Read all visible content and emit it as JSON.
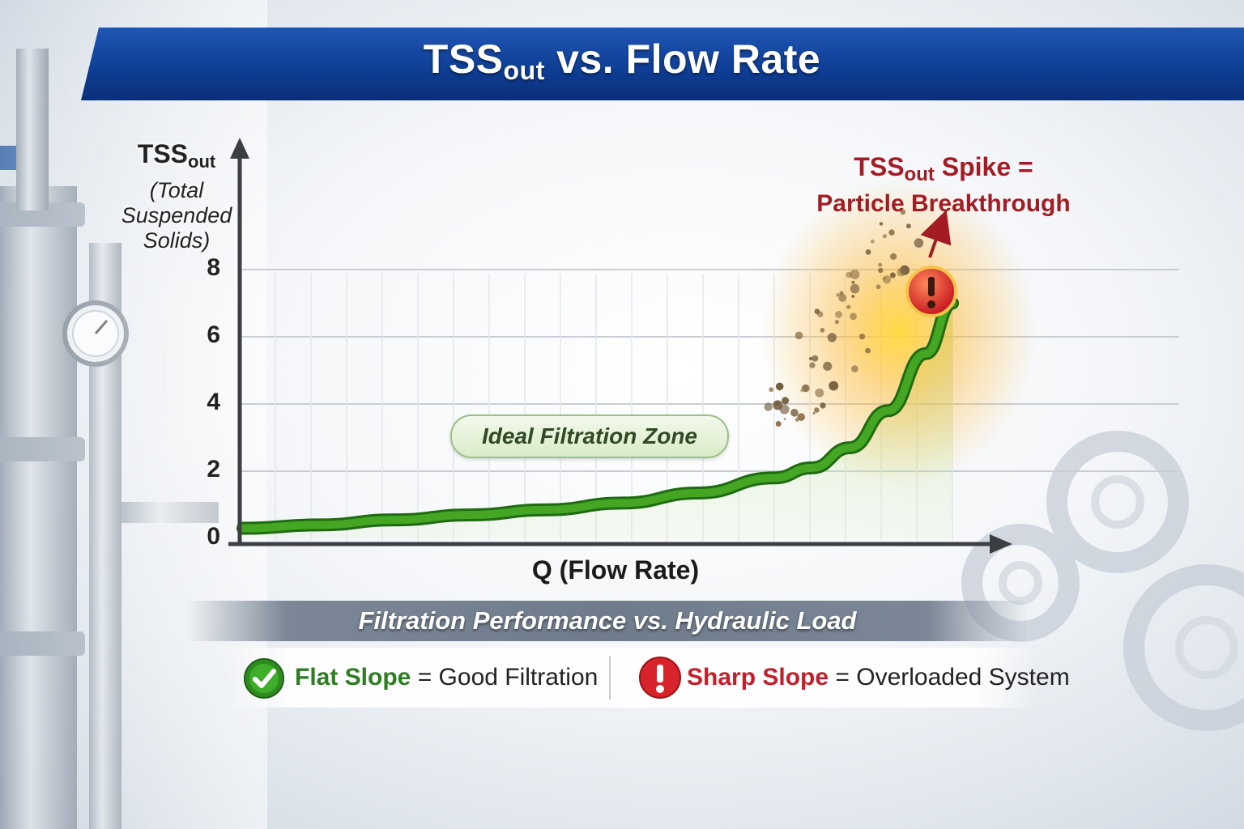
{
  "title": {
    "main": "TSS",
    "sub": "out",
    "rest": " vs. Flow Rate"
  },
  "y_axis": {
    "main": "TSS",
    "sub": "out",
    "line1": "(Total",
    "line2": "Suspended",
    "line3": "Solids)"
  },
  "x_axis": {
    "label": "Q (Flow Rate)"
  },
  "annotations": {
    "zone": "Ideal Filtration Zone",
    "spike_main": "TSS",
    "spike_sub": "out",
    "spike_rest": " Spike =",
    "spike_line2": "Particle Breakthrough"
  },
  "subtitle": "Filtration Performance vs. Hydraulic Load",
  "legend": {
    "good_key": "Flat Slope",
    "good_rest": " = Good Filtration",
    "bad_key": "Sharp Slope",
    "bad_rest": " = Overloaded System"
  },
  "colors": {
    "curve": "#3f9a1f",
    "curve_dark": "#1f6b12",
    "title_bar": "#0f3f97",
    "alert": "#d8232a",
    "good": "#2e7d22",
    "bad": "#c21f2a"
  },
  "icons": {
    "check": "check-circle-icon",
    "alert": "exclamation-circle-icon"
  },
  "chart_data": {
    "type": "line",
    "ylim": [
      0,
      8
    ],
    "yticks": [
      0,
      2,
      4,
      6,
      8
    ],
    "xlim": [
      0,
      10
    ],
    "grid": true,
    "series": [
      {
        "x": [
          0,
          1,
          2,
          3,
          4,
          5,
          6,
          7,
          7.5,
          8,
          8.5,
          9,
          9.35
        ],
        "values": [
          0.3,
          0.4,
          0.55,
          0.7,
          0.85,
          1.05,
          1.35,
          1.8,
          2.1,
          2.7,
          3.8,
          5.5,
          7.0
        ]
      }
    ]
  }
}
